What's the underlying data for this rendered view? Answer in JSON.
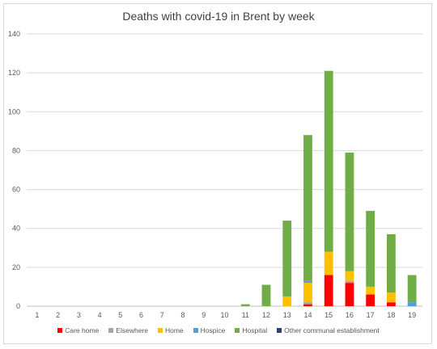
{
  "chart_data": {
    "type": "bar",
    "stacked": true,
    "title": "Deaths with covid-19 in Brent by week",
    "xlabel": "",
    "ylabel": "",
    "ylim": [
      0,
      140
    ],
    "yticks": [
      0,
      20,
      40,
      60,
      80,
      100,
      120,
      140
    ],
    "grid": true,
    "legend_position": "bottom",
    "categories": [
      "1",
      "2",
      "3",
      "4",
      "5",
      "6",
      "7",
      "8",
      "9",
      "10",
      "11",
      "12",
      "13",
      "14",
      "15",
      "16",
      "17",
      "18",
      "19"
    ],
    "series": [
      {
        "name": "Care home",
        "color": "#ff0000",
        "values": [
          0,
          0,
          0,
          0,
          0,
          0,
          0,
          0,
          0,
          0,
          0,
          0,
          0,
          1,
          16,
          12,
          6,
          2,
          0
        ]
      },
      {
        "name": "Elsewhere",
        "color": "#a5a5a5",
        "values": [
          0,
          0,
          0,
          0,
          0,
          0,
          0,
          0,
          0,
          0,
          0,
          0,
          0,
          1,
          0,
          1,
          0,
          0,
          0
        ]
      },
      {
        "name": "Home",
        "color": "#ffc000",
        "values": [
          0,
          0,
          0,
          0,
          0,
          0,
          0,
          0,
          0,
          0,
          0,
          0,
          5,
          10,
          12,
          5,
          4,
          5,
          0
        ]
      },
      {
        "name": "Hospice",
        "color": "#5b9bd5",
        "values": [
          0,
          0,
          0,
          0,
          0,
          0,
          0,
          0,
          0,
          0,
          0,
          0,
          0,
          1,
          0,
          0,
          0,
          0,
          2
        ]
      },
      {
        "name": "Hospital",
        "color": "#70ad47",
        "values": [
          0,
          0,
          0,
          0,
          0,
          0,
          0,
          0,
          0,
          0,
          1,
          11,
          39,
          75,
          93,
          61,
          39,
          30,
          14
        ]
      },
      {
        "name": "Other communal establishment",
        "color": "#264478",
        "values": [
          0,
          0,
          0,
          0,
          0,
          0,
          0,
          0,
          0,
          0,
          0,
          0,
          0,
          0,
          0,
          0,
          0,
          0,
          0
        ]
      }
    ]
  }
}
